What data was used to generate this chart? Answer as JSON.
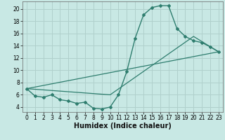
{
  "xlabel": "Humidex (Indice chaleur)",
  "bg_color": "#c8e8e4",
  "grid_color": "#b0d0cc",
  "line_color": "#2e7d6e",
  "xlim": [
    -0.5,
    23.5
  ],
  "ylim": [
    3.2,
    21.2
  ],
  "xticks": [
    0,
    1,
    2,
    3,
    4,
    5,
    6,
    7,
    8,
    9,
    10,
    11,
    12,
    13,
    14,
    15,
    16,
    17,
    18,
    19,
    20,
    21,
    22,
    23
  ],
  "yticks": [
    4,
    6,
    8,
    10,
    12,
    14,
    16,
    18,
    20
  ],
  "curve1_x": [
    0,
    1,
    2,
    3,
    4,
    5,
    6,
    7,
    8,
    9,
    10,
    11,
    12,
    13,
    14,
    15,
    16,
    17,
    18,
    19,
    20,
    21,
    22,
    23
  ],
  "curve1_y": [
    7.0,
    5.8,
    5.6,
    6.0,
    5.2,
    5.0,
    4.6,
    4.8,
    3.8,
    3.7,
    4.0,
    6.0,
    9.8,
    15.2,
    19.0,
    20.2,
    20.5,
    20.5,
    16.8,
    15.5,
    14.8,
    14.5,
    13.8,
    13.0
  ],
  "curve2_x": [
    0,
    23
  ],
  "curve2_y": [
    7.0,
    13.0
  ],
  "curve3_x": [
    0,
    10,
    20,
    23
  ],
  "curve3_y": [
    7.0,
    6.0,
    15.5,
    13.0
  ],
  "xlabel_fontsize": 7.0,
  "tick_fontsize": 5.5
}
